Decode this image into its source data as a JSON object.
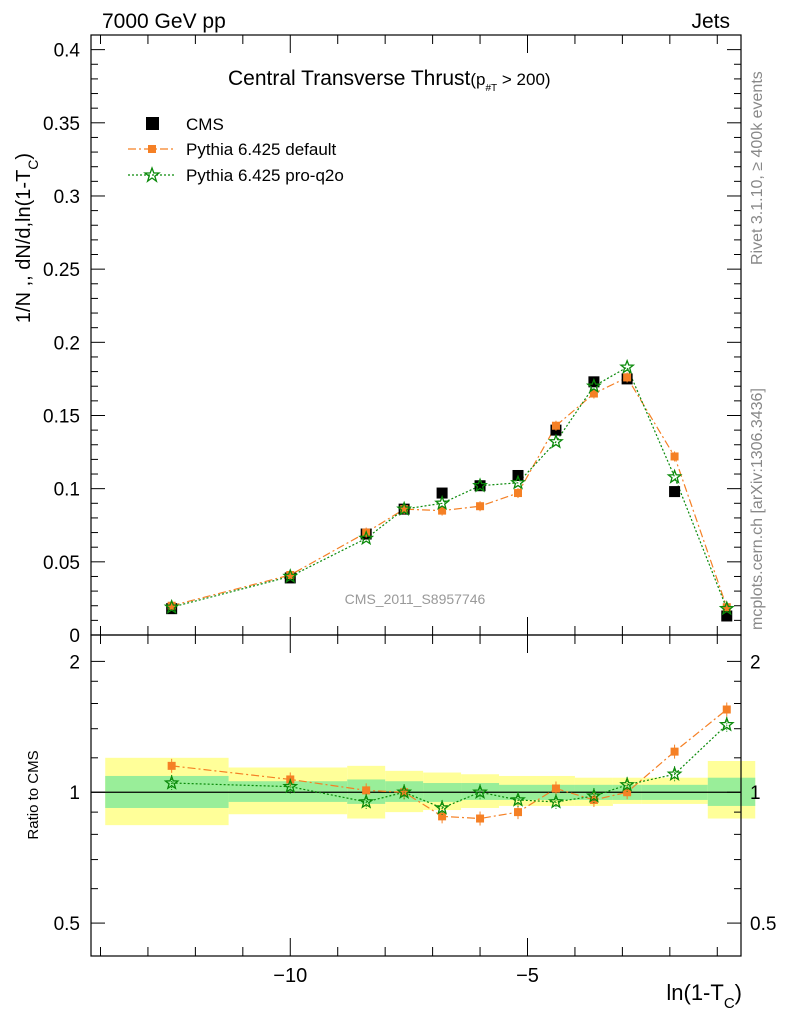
{
  "header": {
    "left": "7000 GeV pp",
    "right": "Jets"
  },
  "side_labels": {
    "rivet": "Rivet 3.1.10, ≥ 400k events",
    "mcplots": "mcplots.cern.ch [arXiv:1306.3436]"
  },
  "watermark": "CMS_2011_S8957746",
  "chart_data": [
    {
      "type": "scatter",
      "title": "Central Transverse Thrust",
      "title_sub": "(p",
      "title_sub_index": "#T",
      "title_tail": " > 200)",
      "ylabel": "1/N ,, dN/d,ln(1-T",
      "ylabel_sub": "C",
      "ylabel_tail": ")",
      "xlabel": "ln(1-T",
      "xlabel_sub": "C",
      "xlabel_tail": ")",
      "xlim": [
        -14.2,
        -0.5
      ],
      "ylim": [
        0,
        0.41
      ],
      "x_ticks": [
        -10,
        -5
      ],
      "x_tick_labels": [
        "−10",
        "−5"
      ],
      "y_ticks": [
        0,
        0.05,
        0.1,
        0.15,
        0.2,
        0.25,
        0.3,
        0.35,
        0.4
      ],
      "y_tick_labels": [
        "0",
        "0.05",
        "0.1",
        "0.15",
        "0.2",
        "0.25",
        "0.3",
        "0.35",
        "0.4"
      ],
      "legend_position": "top-left",
      "x": [
        -12.5,
        -10.0,
        -8.4,
        -7.6,
        -6.8,
        -6.0,
        -5.2,
        -4.4,
        -3.6,
        -2.9,
        -1.9,
        -0.8
      ],
      "series": [
        {
          "name": "CMS",
          "color": "#000000",
          "marker": "square",
          "values": [
            0.018,
            0.039,
            0.069,
            0.086,
            0.097,
            0.102,
            0.109,
            0.14,
            0.173,
            0.175,
            0.098,
            0.013
          ]
        },
        {
          "name": "Pythia 6.425 default",
          "color": "#f58025",
          "marker": "square-small",
          "line": "dashdot",
          "values": [
            0.02,
            0.041,
            0.07,
            0.086,
            0.085,
            0.088,
            0.097,
            0.143,
            0.165,
            0.176,
            0.122,
            0.019
          ]
        },
        {
          "name": "Pythia 6.425 pro-q2o",
          "color": "#0a8a0a",
          "marker": "star",
          "line": "dotted",
          "values": [
            0.019,
            0.04,
            0.066,
            0.086,
            0.09,
            0.102,
            0.104,
            0.132,
            0.17,
            0.183,
            0.108,
            0.018
          ]
        }
      ]
    },
    {
      "type": "scatter",
      "ylabel": "Ratio to CMS",
      "ylim": [
        0.42,
        2.3
      ],
      "y_scale": "log",
      "y_ticks": [
        0.5,
        1,
        2
      ],
      "y_tick_labels": [
        "0.5",
        "1",
        "2"
      ],
      "x": [
        -12.5,
        -10.0,
        -8.4,
        -7.6,
        -6.8,
        -6.0,
        -5.2,
        -4.4,
        -3.6,
        -2.9,
        -1.9,
        -0.8
      ],
      "bands": {
        "edges": [
          -13.9,
          -11.3,
          -8.8,
          -8.0,
          -7.2,
          -6.4,
          -5.6,
          -4.8,
          -4.0,
          -3.2,
          -2.6,
          -1.2,
          -0.2
        ],
        "inner_color": "#99ee99",
        "outer_color": "#ffff99",
        "inner": [
          [
            0.92,
            1.09
          ],
          [
            0.95,
            1.06
          ],
          [
            0.94,
            1.07
          ],
          [
            0.95,
            1.06
          ],
          [
            0.95,
            1.05
          ],
          [
            0.96,
            1.05
          ],
          [
            0.96,
            1.04
          ],
          [
            0.96,
            1.04
          ],
          [
            0.96,
            1.04
          ],
          [
            0.96,
            1.04
          ],
          [
            0.96,
            1.04
          ],
          [
            0.93,
            1.08
          ]
        ],
        "outer": [
          [
            0.84,
            1.2
          ],
          [
            0.89,
            1.14
          ],
          [
            0.87,
            1.15
          ],
          [
            0.9,
            1.12
          ],
          [
            0.91,
            1.11
          ],
          [
            0.92,
            1.1
          ],
          [
            0.93,
            1.09
          ],
          [
            0.93,
            1.09
          ],
          [
            0.93,
            1.08
          ],
          [
            0.94,
            1.08
          ],
          [
            0.94,
            1.08
          ],
          [
            0.87,
            1.18
          ]
        ]
      },
      "series": [
        {
          "name": "Pythia 6.425 default",
          "color": "#f58025",
          "values": [
            1.15,
            1.07,
            1.01,
            1.0,
            0.88,
            0.87,
            0.9,
            1.02,
            0.96,
            1.0,
            1.24,
            1.55
          ]
        },
        {
          "name": "Pythia 6.425 pro-q2o",
          "color": "#0a8a0a",
          "values": [
            1.05,
            1.03,
            0.95,
            1.0,
            0.92,
            1.0,
            0.96,
            0.95,
            0.98,
            1.04,
            1.1,
            1.43
          ]
        }
      ]
    }
  ]
}
